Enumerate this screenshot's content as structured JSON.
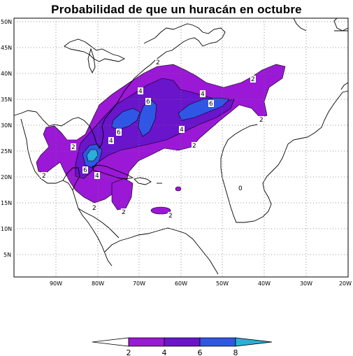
{
  "title": "Probabilidad de que un huracán en octubre",
  "map": {
    "lat_ticks": [
      "50N",
      "45N",
      "40N",
      "35N",
      "30N",
      "25N",
      "20N",
      "15N",
      "10N",
      "5N"
    ],
    "lon_ticks": [
      "90W",
      "80W",
      "70W",
      "60W",
      "50W",
      "40W",
      "30W",
      "20W"
    ],
    "lon_range": [
      -100,
      -20
    ],
    "lat_range": [
      1,
      51
    ],
    "grid": true,
    "contour_labels": [
      "2",
      "2",
      "2",
      "2",
      "2",
      "2",
      "2",
      "2",
      "2",
      "4",
      "4",
      "4",
      "4",
      "4",
      "6",
      "6",
      "6",
      "6",
      "0"
    ],
    "fill_colors": {
      "2-4": "#9a18d6",
      "4-6": "#6a14cc",
      "6-8": "#3056e6",
      "gt8": "#2ab0d8"
    }
  },
  "colorbar": {
    "labels": [
      "2",
      "4",
      "6",
      "8"
    ],
    "colors": [
      "#ffffff",
      "#9a18d6",
      "#6a14cc",
      "#3056e6",
      "#2ab0d8"
    ]
  }
}
